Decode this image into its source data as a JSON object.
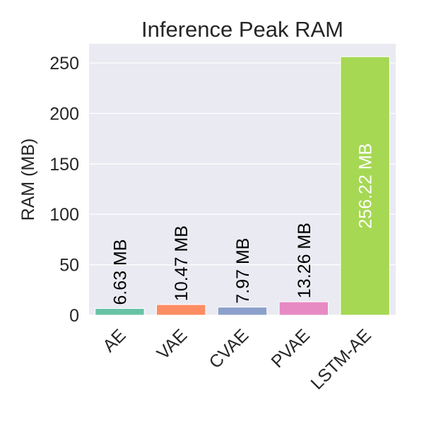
{
  "chart_data": {
    "type": "bar",
    "title": "Inference Peak RAM",
    "xlabel": "",
    "ylabel": "RAM (MB)",
    "ylim": [
      0,
      269
    ],
    "yticks": [
      0,
      50,
      100,
      150,
      200,
      250
    ],
    "grid": true,
    "categories": [
      "AE",
      "VAE",
      "CVAE",
      "PVAE",
      "LSTM-AE"
    ],
    "values": [
      6.63,
      10.47,
      7.97,
      13.26,
      256.22
    ],
    "data_labels": [
      "6.63 MB",
      "10.47 MB",
      "7.97 MB",
      "13.26 MB",
      "256.22 MB"
    ],
    "colors": [
      "#66c2a5",
      "#fc8d62",
      "#8da0cb",
      "#e78ac3",
      "#a6d854"
    ],
    "background": "#eaeaf2"
  }
}
